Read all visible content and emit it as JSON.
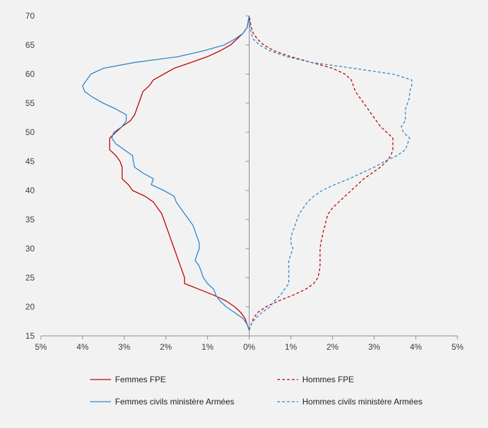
{
  "chart_data": {
    "type": "line",
    "subtype": "age-pyramid",
    "title": "",
    "xlabel": "",
    "ylabel": "",
    "x_axis": {
      "ticks": [
        -5,
        -4,
        -3,
        -2,
        -1,
        0,
        1,
        2,
        3,
        4,
        5
      ],
      "tick_labels": [
        "5%",
        "4%",
        "3%",
        "2%",
        "1%",
        "0%",
        "1%",
        "2%",
        "3%",
        "4%",
        "5%"
      ],
      "xlim": [
        -5,
        5
      ],
      "note_sign": "negative x = women (left side), positive x = men (right side)"
    },
    "y_axis": {
      "ticks": [
        15,
        20,
        25,
        30,
        35,
        40,
        45,
        50,
        55,
        60,
        65,
        70
      ],
      "tick_labels": [
        "15",
        "20",
        "25",
        "30",
        "35",
        "40",
        "45",
        "50",
        "55",
        "60",
        "65",
        "70"
      ],
      "ylim": [
        15,
        70
      ]
    },
    "grid": false,
    "legend_position": "bottom",
    "series": [
      {
        "name": "Femmes FPE",
        "color": "#c00000",
        "dash": "solid",
        "points": [
          [
            0,
            16
          ],
          [
            -0.05,
            17
          ],
          [
            -0.1,
            18
          ],
          [
            -0.2,
            19
          ],
          [
            -0.35,
            20
          ],
          [
            -0.55,
            21
          ],
          [
            -0.85,
            22
          ],
          [
            -1.2,
            23
          ],
          [
            -1.55,
            24
          ],
          [
            -1.55,
            25
          ],
          [
            -1.6,
            26
          ],
          [
            -1.65,
            27
          ],
          [
            -1.7,
            28
          ],
          [
            -1.75,
            29
          ],
          [
            -1.8,
            30
          ],
          [
            -1.85,
            31
          ],
          [
            -1.9,
            32
          ],
          [
            -1.95,
            33
          ],
          [
            -2.0,
            34
          ],
          [
            -2.05,
            35
          ],
          [
            -2.1,
            36
          ],
          [
            -2.2,
            37
          ],
          [
            -2.3,
            38
          ],
          [
            -2.5,
            39
          ],
          [
            -2.8,
            40
          ],
          [
            -2.9,
            41
          ],
          [
            -3.05,
            42
          ],
          [
            -3.05,
            43
          ],
          [
            -3.05,
            44
          ],
          [
            -3.1,
            45
          ],
          [
            -3.2,
            46
          ],
          [
            -3.35,
            47
          ],
          [
            -3.35,
            48
          ],
          [
            -3.35,
            49
          ],
          [
            -3.2,
            50
          ],
          [
            -3.05,
            51
          ],
          [
            -2.85,
            52
          ],
          [
            -2.75,
            53
          ],
          [
            -2.7,
            54
          ],
          [
            -2.65,
            55
          ],
          [
            -2.6,
            56
          ],
          [
            -2.55,
            57
          ],
          [
            -2.4,
            58
          ],
          [
            -2.3,
            59
          ],
          [
            -2.05,
            60
          ],
          [
            -1.8,
            61
          ],
          [
            -1.4,
            62
          ],
          [
            -1.0,
            63
          ],
          [
            -0.7,
            64
          ],
          [
            -0.45,
            65
          ],
          [
            -0.3,
            66
          ],
          [
            -0.15,
            67
          ],
          [
            -0.05,
            68
          ],
          [
            0,
            70
          ]
        ]
      },
      {
        "name": "Hommes FPE",
        "color": "#c00000",
        "dash": "dashed",
        "points": [
          [
            0,
            16
          ],
          [
            0.05,
            17
          ],
          [
            0.1,
            18
          ],
          [
            0.2,
            19
          ],
          [
            0.4,
            20
          ],
          [
            0.7,
            21
          ],
          [
            1.05,
            22
          ],
          [
            1.35,
            23
          ],
          [
            1.55,
            24
          ],
          [
            1.65,
            25
          ],
          [
            1.68,
            26
          ],
          [
            1.7,
            27
          ],
          [
            1.7,
            28
          ],
          [
            1.7,
            29
          ],
          [
            1.7,
            30
          ],
          [
            1.72,
            31
          ],
          [
            1.75,
            32
          ],
          [
            1.78,
            33
          ],
          [
            1.82,
            34
          ],
          [
            1.85,
            35
          ],
          [
            1.9,
            36
          ],
          [
            2.0,
            37
          ],
          [
            2.15,
            38
          ],
          [
            2.3,
            39
          ],
          [
            2.45,
            40
          ],
          [
            2.6,
            41
          ],
          [
            2.75,
            42
          ],
          [
            2.95,
            43
          ],
          [
            3.15,
            44
          ],
          [
            3.3,
            45
          ],
          [
            3.4,
            46
          ],
          [
            3.45,
            47
          ],
          [
            3.45,
            48
          ],
          [
            3.45,
            49
          ],
          [
            3.3,
            50
          ],
          [
            3.15,
            51
          ],
          [
            3.05,
            52
          ],
          [
            2.95,
            53
          ],
          [
            2.85,
            54
          ],
          [
            2.75,
            55
          ],
          [
            2.65,
            56
          ],
          [
            2.55,
            57
          ],
          [
            2.5,
            58
          ],
          [
            2.45,
            59
          ],
          [
            2.3,
            60
          ],
          [
            2.0,
            61
          ],
          [
            1.5,
            62
          ],
          [
            1.0,
            63
          ],
          [
            0.6,
            64
          ],
          [
            0.35,
            65
          ],
          [
            0.2,
            66
          ],
          [
            0.1,
            67
          ],
          [
            0.05,
            68
          ],
          [
            0,
            70
          ]
        ]
      },
      {
        "name": "Femmes civils ministère Armées",
        "color": "#2e86c9",
        "dash": "solid",
        "points": [
          [
            0,
            16
          ],
          [
            -0.05,
            17
          ],
          [
            -0.15,
            18
          ],
          [
            -0.35,
            19
          ],
          [
            -0.55,
            20
          ],
          [
            -0.7,
            21
          ],
          [
            -0.8,
            22
          ],
          [
            -0.85,
            23
          ],
          [
            -1.0,
            24
          ],
          [
            -1.1,
            25
          ],
          [
            -1.15,
            26
          ],
          [
            -1.2,
            27
          ],
          [
            -1.3,
            28
          ],
          [
            -1.25,
            29
          ],
          [
            -1.2,
            30
          ],
          [
            -1.2,
            31
          ],
          [
            -1.25,
            32
          ],
          [
            -1.3,
            33
          ],
          [
            -1.35,
            34
          ],
          [
            -1.45,
            35
          ],
          [
            -1.55,
            36
          ],
          [
            -1.65,
            37
          ],
          [
            -1.75,
            38
          ],
          [
            -1.8,
            39
          ],
          [
            -2.05,
            40
          ],
          [
            -2.35,
            41
          ],
          [
            -2.3,
            42
          ],
          [
            -2.55,
            43
          ],
          [
            -2.75,
            44
          ],
          [
            -2.78,
            45
          ],
          [
            -2.8,
            46
          ],
          [
            -3.0,
            47
          ],
          [
            -3.2,
            48
          ],
          [
            -3.3,
            49
          ],
          [
            -3.25,
            50
          ],
          [
            -3.05,
            51
          ],
          [
            -2.95,
            52
          ],
          [
            -2.95,
            53
          ],
          [
            -3.2,
            54
          ],
          [
            -3.5,
            55
          ],
          [
            -3.75,
            56
          ],
          [
            -3.95,
            57
          ],
          [
            -4.0,
            58
          ],
          [
            -3.9,
            59
          ],
          [
            -3.8,
            60
          ],
          [
            -3.5,
            61
          ],
          [
            -2.75,
            62
          ],
          [
            -1.7,
            63
          ],
          [
            -1.1,
            64
          ],
          [
            -0.6,
            65
          ],
          [
            -0.35,
            66
          ],
          [
            -0.15,
            67
          ],
          [
            -0.05,
            68
          ],
          [
            0,
            70
          ]
        ]
      },
      {
        "name": "Hommes civils ministère Armées",
        "color": "#2e86c9",
        "dash": "dashed",
        "points": [
          [
            0,
            16
          ],
          [
            0.05,
            17
          ],
          [
            0.15,
            18
          ],
          [
            0.3,
            19
          ],
          [
            0.5,
            20
          ],
          [
            0.6,
            21
          ],
          [
            0.75,
            22
          ],
          [
            0.85,
            23
          ],
          [
            0.95,
            24
          ],
          [
            0.95,
            25
          ],
          [
            0.95,
            26
          ],
          [
            0.95,
            27
          ],
          [
            0.95,
            28
          ],
          [
            1.0,
            29
          ],
          [
            1.05,
            30
          ],
          [
            1.0,
            31
          ],
          [
            1.0,
            32
          ],
          [
            1.05,
            33
          ],
          [
            1.1,
            34
          ],
          [
            1.15,
            35
          ],
          [
            1.2,
            36
          ],
          [
            1.3,
            37
          ],
          [
            1.4,
            38
          ],
          [
            1.55,
            39
          ],
          [
            1.75,
            40
          ],
          [
            2.05,
            41
          ],
          [
            2.4,
            42
          ],
          [
            2.7,
            43
          ],
          [
            3.0,
            44
          ],
          [
            3.25,
            45
          ],
          [
            3.55,
            46
          ],
          [
            3.75,
            47
          ],
          [
            3.8,
            48
          ],
          [
            3.85,
            49
          ],
          [
            3.7,
            50
          ],
          [
            3.65,
            51
          ],
          [
            3.75,
            52
          ],
          [
            3.75,
            53
          ],
          [
            3.75,
            54
          ],
          [
            3.8,
            55
          ],
          [
            3.85,
            56
          ],
          [
            3.85,
            57
          ],
          [
            3.9,
            58
          ],
          [
            3.9,
            59
          ],
          [
            3.45,
            60
          ],
          [
            2.5,
            61
          ],
          [
            1.5,
            62
          ],
          [
            0.9,
            63
          ],
          [
            0.5,
            64
          ],
          [
            0.25,
            65
          ],
          [
            0.1,
            66
          ],
          [
            0.05,
            67
          ],
          [
            0.02,
            68
          ],
          [
            0,
            70
          ]
        ]
      }
    ]
  }
}
